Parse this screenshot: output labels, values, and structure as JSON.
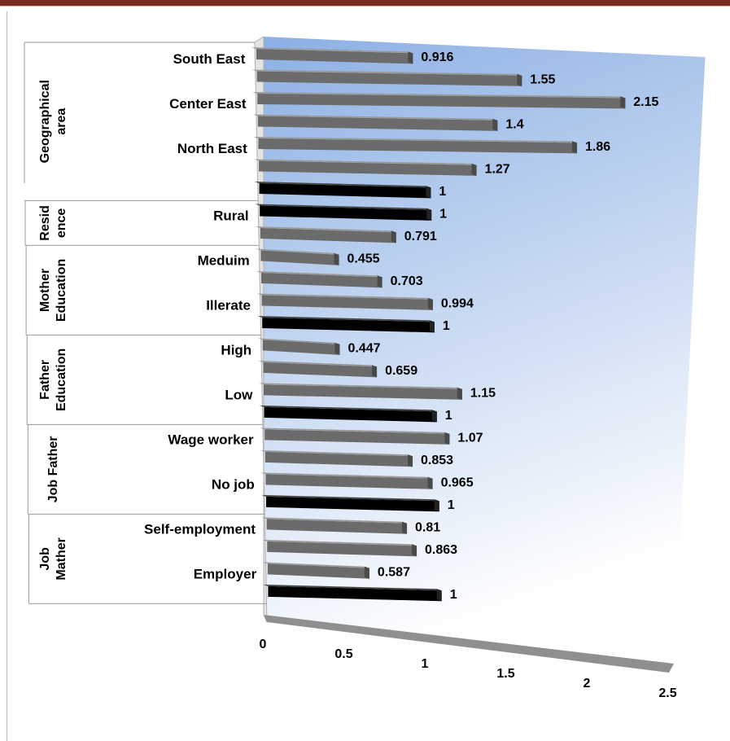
{
  "chart_data": {
    "type": "bar",
    "orientation": "horizontal",
    "xlim": [
      0,
      2.5
    ],
    "x_ticks": [
      "0",
      "0.5",
      "1",
      "1.5",
      "2",
      "2.5"
    ],
    "groups": [
      {
        "name": "Geographical area",
        "lines": [
          "Geographical",
          "area"
        ],
        "categories": [
          "South East",
          "Center East",
          "North East"
        ],
        "values": [
          0.916,
          1.55,
          2.15,
          1.4,
          1.86,
          1.27,
          1
        ]
      },
      {
        "name": "Residence",
        "lines": [
          "Resid",
          "ence"
        ],
        "categories": [
          "Rural"
        ],
        "values": [
          1,
          0.791
        ]
      },
      {
        "name": "Mother Education",
        "lines": [
          "Mother",
          "Education"
        ],
        "categories": [
          "Meduim",
          "Illerate"
        ],
        "values": [
          0.455,
          0.703,
          0.994,
          1
        ]
      },
      {
        "name": "Father Education",
        "lines": [
          "Father",
          "Education"
        ],
        "categories": [
          "High",
          "Low"
        ],
        "values": [
          0.447,
          0.659,
          1.15,
          1
        ]
      },
      {
        "name": "Job Father",
        "lines": [
          "Job Father"
        ],
        "categories": [
          "Wage worker",
          "No job"
        ],
        "values": [
          1.07,
          0.853,
          0.965,
          1
        ]
      },
      {
        "name": "Job Mather",
        "lines": [
          "Job",
          "Mather"
        ],
        "categories": [
          "Self-employment",
          "Employer"
        ],
        "values": [
          0.81,
          0.863,
          0.587,
          1
        ]
      }
    ],
    "reference_value": 1,
    "colors": {
      "bar": "#6b6b6b",
      "bar_top": "#9a9a9a",
      "reference_bar": "#000000",
      "wall_top": "#8cb0e4",
      "wall_bottom": "#ffffff"
    }
  }
}
